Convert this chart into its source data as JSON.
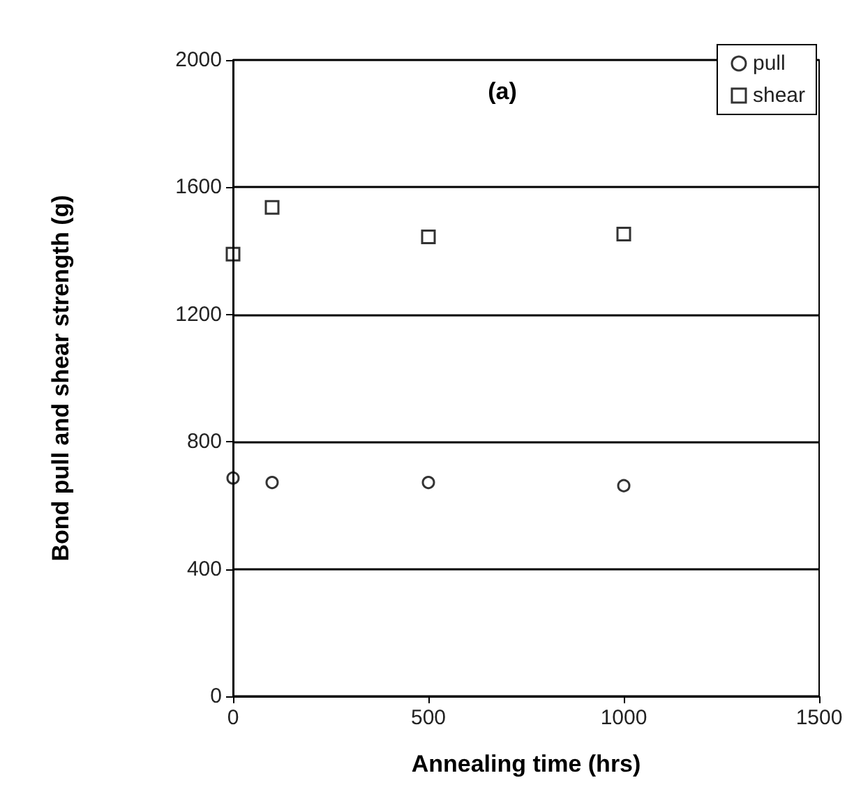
{
  "chart_data": {
    "type": "scatter",
    "xlabel": "Annealing time (hrs)",
    "ylabel": "Bond pull and shear strength (g)",
    "annotations": [
      "(a)"
    ],
    "xlim": [
      0,
      1500
    ],
    "xticks": [
      0,
      500,
      1000,
      1500
    ],
    "ylim": [
      0,
      2000
    ],
    "yticks": [
      0,
      400,
      800,
      1200,
      1600,
      2000
    ],
    "grid": "y",
    "legend": "top right",
    "series": [
      {
        "name": "pull",
        "color": "#000000",
        "marker": "circle",
        "x": [
          0,
          100,
          500,
          1000
        ],
        "values": [
          686,
          672,
          672,
          662
        ]
      },
      {
        "name": "shear",
        "color": "#000000",
        "marker": "square",
        "x": [
          0,
          100,
          500,
          1000
        ],
        "values": [
          1390,
          1537,
          1444,
          1453
        ]
      }
    ]
  }
}
